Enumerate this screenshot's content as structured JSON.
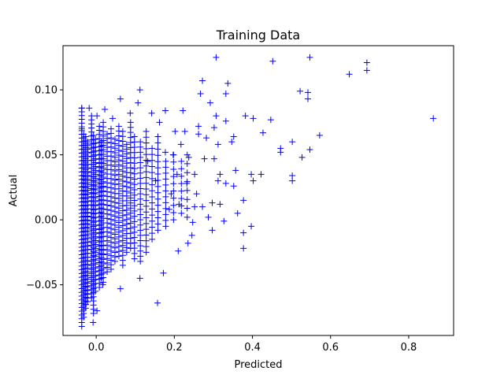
{
  "chart_data": {
    "type": "scatter",
    "title": "Training Data",
    "xlabel": "Predicted",
    "ylabel": "Actual",
    "xlim": [
      -0.085,
      0.915
    ],
    "ylim": [
      -0.089,
      0.134
    ],
    "xticks": [
      0.0,
      0.2,
      0.4,
      0.6,
      0.8
    ],
    "xtick_labels": [
      "0.0",
      "0.2",
      "0.4",
      "0.6",
      "0.8"
    ],
    "yticks": [
      -0.05,
      0.0,
      0.05,
      0.1
    ],
    "ytick_labels": [
      "−0.05",
      "0.00",
      "0.05",
      "0.10"
    ],
    "grid": false,
    "marker": "+",
    "color": "#0000ff",
    "points": [
      [
        0.863,
        0.078
      ],
      [
        0.693,
        0.121
      ],
      [
        0.693,
        0.115
      ],
      [
        0.648,
        0.112
      ],
      [
        0.547,
        0.125
      ],
      [
        0.572,
        0.065
      ],
      [
        0.547,
        0.054
      ],
      [
        0.527,
        0.048
      ],
      [
        0.542,
        0.093
      ],
      [
        0.542,
        0.098
      ],
      [
        0.522,
        0.099
      ],
      [
        0.502,
        0.06
      ],
      [
        0.502,
        0.034
      ],
      [
        0.502,
        0.03
      ],
      [
        0.472,
        0.055
      ],
      [
        0.472,
        0.052
      ],
      [
        0.452,
        0.122
      ],
      [
        0.447,
        0.077
      ],
      [
        0.427,
        0.067
      ],
      [
        0.422,
        0.035
      ],
      [
        0.402,
        0.078
      ],
      [
        0.397,
        0.035
      ],
      [
        0.397,
        -0.005
      ],
      [
        0.382,
        0.08
      ],
      [
        0.377,
        0.015
      ],
      [
        0.377,
        -0.01
      ],
      [
        0.377,
        -0.022
      ],
      [
        0.357,
        0.038
      ],
      [
        0.352,
        0.026
      ],
      [
        0.352,
        0.064
      ],
      [
        0.337,
        0.105
      ],
      [
        0.332,
        0.097
      ],
      [
        0.332,
        0.076
      ],
      [
        0.332,
        0.028
      ],
      [
        0.327,
        -0.001
      ],
      [
        0.317,
        0.035
      ],
      [
        0.312,
        0.03
      ],
      [
        0.307,
        0.125
      ],
      [
        0.307,
        0.08
      ],
      [
        0.302,
        0.071
      ],
      [
        0.302,
        0.047
      ],
      [
        0.297,
        0.013
      ],
      [
        0.297,
        -0.008
      ],
      [
        0.282,
        0.063
      ],
      [
        0.277,
        0.047
      ],
      [
        0.272,
        0.107
      ],
      [
        0.267,
        0.097
      ],
      [
        0.262,
        0.072
      ],
      [
        0.262,
        0.066
      ],
      [
        0.257,
        0.02
      ],
      [
        0.252,
        0.035
      ],
      [
        0.252,
        0.01
      ],
      [
        0.247,
        -0.002
      ],
      [
        0.237,
        0.048
      ],
      [
        0.232,
        0.028
      ],
      [
        0.227,
        0.068
      ],
      [
        0.222,
        0.084
      ],
      [
        0.217,
        0.058
      ],
      [
        0.212,
        0.012
      ],
      [
        0.207,
        0.035
      ],
      [
        0.202,
        0.068
      ],
      [
        0.197,
        0.05
      ],
      [
        0.192,
        0.02
      ],
      [
        0.187,
        0.008
      ],
      [
        0.177,
        0.084
      ],
      [
        0.177,
        0.052
      ],
      [
        0.172,
        -0.041
      ],
      [
        0.162,
        0.075
      ],
      [
        0.157,
        -0.064
      ],
      [
        0.152,
        0.03
      ],
      [
        0.142,
        0.082
      ],
      [
        0.132,
        0.045
      ],
      [
        0.112,
        0.1
      ],
      [
        0.112,
        -0.045
      ],
      [
        0.107,
        0.09
      ],
      [
        0.087,
        0.082
      ],
      [
        0.062,
        0.093
      ],
      [
        0.062,
        -0.053
      ],
      [
        0.042,
        0.078
      ],
      [
        0.022,
        0.085
      ],
      [
        0.017,
        -0.05
      ],
      [
        -0.008,
        -0.079
      ],
      [
        -0.018,
        0.086
      ],
      [
        -0.037,
        0.086
      ],
      [
        -0.037,
        -0.082
      ],
      [
        0.002,
        0.08
      ],
      [
        0.002,
        -0.07
      ],
      [
        -0.037,
        0.07
      ],
      [
        -0.027,
        -0.065
      ],
      [
        0.245,
        -0.012
      ],
      [
        0.21,
        -0.024
      ],
      [
        0.235,
        -0.018
      ],
      [
        0.317,
        0.012
      ],
      [
        0.272,
        0.01
      ],
      [
        0.402,
        0.03
      ],
      [
        0.287,
        0.002
      ],
      [
        0.362,
        0.005
      ],
      [
        0.292,
        0.09
      ],
      [
        0.347,
        0.06
      ],
      [
        0.312,
        0.058
      ]
    ],
    "columns": [
      {
        "x": -0.037,
        "y0": -0.079,
        "y1": 0.086,
        "n": 58
      },
      {
        "x": -0.032,
        "y0": -0.075,
        "y1": 0.066,
        "n": 50
      },
      {
        "x": -0.027,
        "y0": -0.068,
        "y1": 0.064,
        "n": 48
      },
      {
        "x": -0.022,
        "y0": -0.063,
        "y1": 0.06,
        "n": 44
      },
      {
        "x": -0.012,
        "y0": -0.06,
        "y1": 0.08,
        "n": 46
      },
      {
        "x": -0.007,
        "y0": -0.072,
        "y1": 0.065,
        "n": 44
      },
      {
        "x": -0.002,
        "y0": -0.055,
        "y1": 0.062,
        "n": 40
      },
      {
        "x": 0.008,
        "y0": -0.052,
        "y1": 0.072,
        "n": 40
      },
      {
        "x": 0.013,
        "y0": -0.045,
        "y1": 0.06,
        "n": 34
      },
      {
        "x": 0.018,
        "y0": -0.048,
        "y1": 0.075,
        "n": 36
      },
      {
        "x": 0.028,
        "y0": -0.04,
        "y1": 0.066,
        "n": 32
      },
      {
        "x": 0.038,
        "y0": -0.038,
        "y1": 0.07,
        "n": 32
      },
      {
        "x": 0.048,
        "y0": -0.032,
        "y1": 0.062,
        "n": 28
      },
      {
        "x": 0.058,
        "y0": -0.028,
        "y1": 0.072,
        "n": 28
      },
      {
        "x": 0.068,
        "y0": -0.035,
        "y1": 0.068,
        "n": 28
      },
      {
        "x": 0.078,
        "y0": -0.025,
        "y1": 0.058,
        "n": 24
      },
      {
        "x": 0.088,
        "y0": -0.022,
        "y1": 0.075,
        "n": 26
      },
      {
        "x": 0.098,
        "y0": -0.03,
        "y1": 0.064,
        "n": 24
      },
      {
        "x": 0.113,
        "y0": -0.032,
        "y1": 0.06,
        "n": 24
      },
      {
        "x": 0.128,
        "y0": -0.025,
        "y1": 0.068,
        "n": 22
      },
      {
        "x": 0.143,
        "y0": -0.015,
        "y1": 0.055,
        "n": 16
      },
      {
        "x": 0.158,
        "y0": -0.008,
        "y1": 0.064,
        "n": 16
      },
      {
        "x": 0.178,
        "y0": -0.005,
        "y1": 0.045,
        "n": 12
      },
      {
        "x": 0.198,
        "y0": 0.0,
        "y1": 0.05,
        "n": 10
      },
      {
        "x": 0.218,
        "y0": 0.005,
        "y1": 0.045,
        "n": 8
      },
      {
        "x": 0.233,
        "y0": 0.002,
        "y1": 0.05,
        "n": 8
      }
    ]
  }
}
